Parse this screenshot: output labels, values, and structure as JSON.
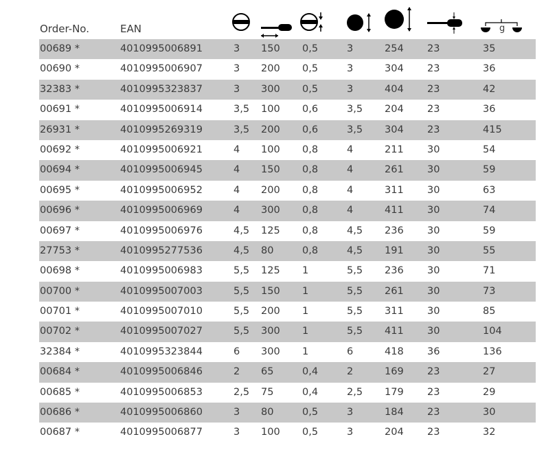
{
  "headers": {
    "order": "Order-No.",
    "ean": "EAN",
    "weight_unit": "g"
  },
  "header_icons": [
    "slot-width-icon",
    "blade-length-icon",
    "blade-thickness-icon",
    "handle-diameter-icon",
    "total-length-icon",
    "shaft-diameter-icon",
    "weight-scale-icon"
  ],
  "colors": {
    "stripe": "#c8c8c8"
  },
  "rows": [
    [
      "00689 *",
      "4010995006891",
      "3",
      "150",
      "0,5",
      "3",
      "254",
      "23",
      "35"
    ],
    [
      "00690 *",
      "4010995006907",
      "3",
      "200",
      "0,5",
      "3",
      "304",
      "23",
      "36"
    ],
    [
      "32383 *",
      "4010995323837",
      "3",
      "300",
      "0,5",
      "3",
      "404",
      "23",
      "42"
    ],
    [
      "00691 *",
      "4010995006914",
      "3,5",
      "100",
      "0,6",
      "3,5",
      "204",
      "23",
      "36"
    ],
    [
      "26931 *",
      "4010995269319",
      "3,5",
      "200",
      "0,6",
      "3,5",
      "304",
      "23",
      "415"
    ],
    [
      "00692 *",
      "4010995006921",
      "4",
      "100",
      "0,8",
      "4",
      "211",
      "30",
      "54"
    ],
    [
      "00694 *",
      "4010995006945",
      "4",
      "150",
      "0,8",
      "4",
      "261",
      "30",
      "59"
    ],
    [
      "00695 *",
      "4010995006952",
      "4",
      "200",
      "0,8",
      "4",
      "311",
      "30",
      "63"
    ],
    [
      "00696 *",
      "4010995006969",
      "4",
      "300",
      "0,8",
      "4",
      "411",
      "30",
      "74"
    ],
    [
      "00697 *",
      "4010995006976",
      "4,5",
      "125",
      "0,8",
      "4,5",
      "236",
      "30",
      "59"
    ],
    [
      "27753 *",
      "4010995277536",
      "4,5",
      "80",
      "0,8",
      "4,5",
      "191",
      "30",
      "55"
    ],
    [
      "00698 *",
      "4010995006983",
      "5,5",
      "125",
      "1",
      "5,5",
      "236",
      "30",
      "71"
    ],
    [
      "00700 *",
      "4010995007003",
      "5,5",
      "150",
      "1",
      "5,5",
      "261",
      "30",
      "73"
    ],
    [
      "00701 *",
      "4010995007010",
      "5,5",
      "200",
      "1",
      "5,5",
      "311",
      "30",
      "85"
    ],
    [
      "00702 *",
      "4010995007027",
      "5,5",
      "300",
      "1",
      "5,5",
      "411",
      "30",
      "104"
    ],
    [
      "32384 *",
      "4010995323844",
      "6",
      "300",
      "1",
      "6",
      "418",
      "36",
      "136"
    ],
    [
      "00684 *",
      "4010995006846",
      "2",
      "65",
      "0,4",
      "2",
      "169",
      "23",
      "27"
    ],
    [
      "00685 *",
      "4010995006853",
      "2,5",
      "75",
      "0,4",
      "2,5",
      "179",
      "23",
      "29"
    ],
    [
      "00686 *",
      "4010995006860",
      "3",
      "80",
      "0,5",
      "3",
      "184",
      "23",
      "30"
    ],
    [
      "00687 *",
      "4010995006877",
      "3",
      "100",
      "0,5",
      "3",
      "204",
      "23",
      "32"
    ]
  ]
}
